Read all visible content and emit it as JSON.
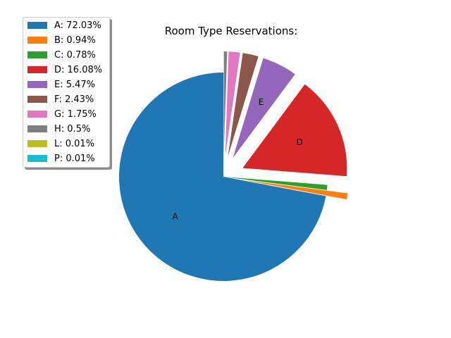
{
  "chart_data": {
    "type": "pie",
    "title": "Room Type Reservations:",
    "slices": [
      {
        "label": "A",
        "value": 72.03,
        "color": "#1f77b4",
        "legend": "A: 72.03%",
        "explode": false,
        "show_label": true
      },
      {
        "label": "B",
        "value": 0.94,
        "color": "#ff7f0e",
        "legend": "B: 0.94%",
        "explode": true,
        "show_label": false
      },
      {
        "label": "C",
        "value": 0.78,
        "color": "#2ca02c",
        "legend": "C: 0.78%",
        "explode": false,
        "show_label": false
      },
      {
        "label": "D",
        "value": 16.08,
        "color": "#d62728",
        "legend": "D: 16.08%",
        "explode": true,
        "show_label": true
      },
      {
        "label": "E",
        "value": 5.47,
        "color": "#9467bd",
        "legend": "E: 5.47%",
        "explode": true,
        "show_label": true
      },
      {
        "label": "F",
        "value": 2.43,
        "color": "#8c564b",
        "legend": "F: 2.43%",
        "explode": true,
        "show_label": false
      },
      {
        "label": "G",
        "value": 1.75,
        "color": "#e377c2",
        "legend": "G: 1.75%",
        "explode": true,
        "show_label": false
      },
      {
        "label": "H",
        "value": 0.5,
        "color": "#7f7f7f",
        "legend": "H: 0.5%",
        "explode": true,
        "show_label": false
      },
      {
        "label": "L",
        "value": 0.01,
        "color": "#bcbd22",
        "legend": "L: 0.01%",
        "explode": false,
        "show_label": false
      },
      {
        "label": "P",
        "value": 0.01,
        "color": "#17becf",
        "legend": "P: 0.01%",
        "explode": false,
        "show_label": false
      }
    ],
    "legend_position": "top-left"
  }
}
